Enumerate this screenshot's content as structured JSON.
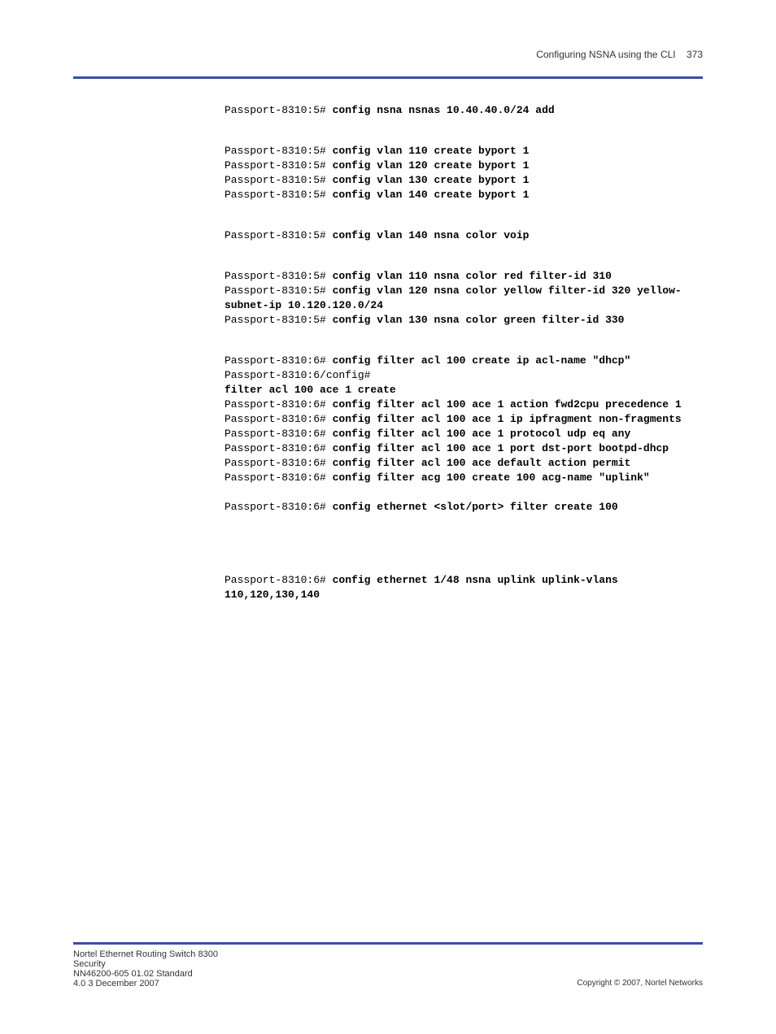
{
  "header": {
    "title": "Configuring NSNA using the CLI",
    "page_number": "373"
  },
  "colors": {
    "rule": "#3b4ca8",
    "text": "#000000",
    "background": "#ffffff"
  },
  "typography": {
    "mono_font": "Courier New",
    "sans_font": "Arial",
    "mono_size_pt": 10,
    "sans_size_pt": 9
  },
  "blocks": [
    {
      "id": "nsna-add",
      "lines": [
        {
          "prompt": "Passport-8310:5# ",
          "cmd": "config nsna nsnas 10.40.40.0/24 add"
        }
      ]
    },
    {
      "id": "vlan-create",
      "lines": [
        {
          "prompt": "Passport-8310:5# ",
          "cmd": "config vlan 110 create byport 1"
        },
        {
          "prompt": "Passport-8310:5# ",
          "cmd": "config vlan 120 create byport 1"
        },
        {
          "prompt": "Passport-8310:5# ",
          "cmd": "config vlan 130 create byport 1"
        },
        {
          "prompt": "Passport-8310:5# ",
          "cmd": "config vlan 140 create byport 1"
        }
      ]
    },
    {
      "id": "vlan-voip",
      "lines": [
        {
          "prompt": "Passport-8310:5# ",
          "cmd": "config vlan 140 nsna color voip"
        }
      ]
    },
    {
      "id": "vlan-colors",
      "lines": [
        {
          "prompt": "Passport-8310:5# ",
          "cmd": "config vlan 110 nsna color red filter-id 310"
        },
        {
          "prompt": "Passport-8310:5# ",
          "cmd": "config vlan 120 nsna color yellow filter-id 320 yellow-subnet-ip 10.120.120.0/24"
        },
        {
          "prompt": "Passport-8310:5# ",
          "cmd": "config vlan 130 nsna color green filter-id 330"
        }
      ]
    },
    {
      "id": "filter-acl",
      "lines": [
        {
          "prompt": "Passport-8310:6# ",
          "cmd": "config filter acl 100 create ip acl-name \"dhcp\""
        },
        {
          "prompt": "Passport-8310:6/config#",
          "cmd": ""
        },
        {
          "prompt": "",
          "cmd": "filter acl 100 ace 1 create"
        },
        {
          "prompt": "Passport-8310:6# ",
          "cmd": "config filter acl 100 ace 1 action fwd2cpu precedence 1"
        },
        {
          "prompt": "Passport-8310:6# ",
          "cmd": "config filter acl 100 ace 1 ip ipfragment non-fragments"
        },
        {
          "prompt": "Passport-8310:6# ",
          "cmd": "config filter acl 100 ace 1 protocol udp eq any"
        },
        {
          "prompt": "Passport-8310:6# ",
          "cmd": "config filter acl 100 ace 1 port dst-port bootpd-dhcp"
        },
        {
          "prompt": "Passport-8310:6# ",
          "cmd": "config filter acl 100 ace default action permit"
        },
        {
          "prompt": "Passport-8310:6# ",
          "cmd": "config filter acg 100 create 100 acg-name \"uplink\""
        }
      ],
      "tight_after": true
    },
    {
      "id": "eth-filter",
      "lines": [
        {
          "prompt": "Passport-8310:6# ",
          "cmd": "config ethernet <slot/port> filter create 100"
        }
      ],
      "big_gap_after": true
    },
    {
      "id": "eth-uplink",
      "lines": [
        {
          "prompt": "Passport-8310:6# ",
          "cmd": "config ethernet 1/48 nsna uplink uplink-vlans 110,120,130,140"
        }
      ]
    }
  ],
  "footer": {
    "left": "Nortel Ethernet Routing Switch 8300",
    "center": "Security",
    "right": "NN46200-605    01.02 Standard",
    "bottom": "4.0    3 December 2007"
  }
}
